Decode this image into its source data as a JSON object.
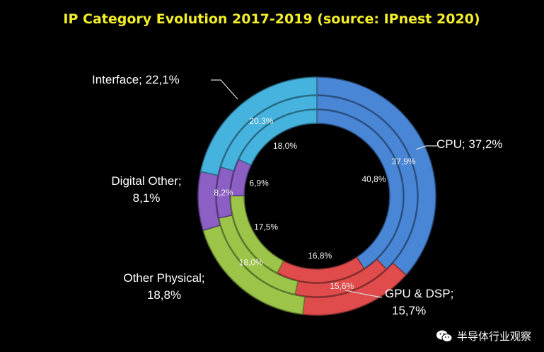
{
  "chart_data": {
    "type": "donut",
    "title": "IP Category Evolution 2017-2019 (source: IPnest  2020)",
    "categories": [
      "CPU",
      "GPU & DSP",
      "Other Physical",
      "Digital Other",
      "Interface"
    ],
    "colors": [
      "#4a86d6",
      "#e04b4b",
      "#9bc44a",
      "#8c5ec4",
      "#45b3dd"
    ],
    "rings": [
      {
        "level": "outer",
        "values": [
          37.2,
          15.7,
          18.8,
          8.1,
          22.1
        ]
      },
      {
        "level": "middle",
        "values": [
          37.9,
          15.6,
          18.0,
          8.2,
          20.3
        ]
      },
      {
        "level": "inner",
        "values": [
          40.8,
          16.8,
          17.5,
          6.9,
          18.0
        ]
      }
    ],
    "outer_labels": [
      "CPU; 37,2%",
      "GPU & DSP;",
      "15,7%",
      "Other Physical;",
      "18,8%",
      "Digital Other;",
      "8,1%",
      "Interface; 22,1%"
    ],
    "ring_labels": {
      "middle": [
        "37,9%",
        "15,6%",
        "18,0%",
        "8,2%",
        "20,3%"
      ],
      "inner": [
        "40,8%",
        "16,8%",
        "17,5%",
        "6,9%",
        "18,0%"
      ]
    }
  },
  "watermark": {
    "icon": "wechat-icon",
    "text": "半导体行业观察"
  }
}
